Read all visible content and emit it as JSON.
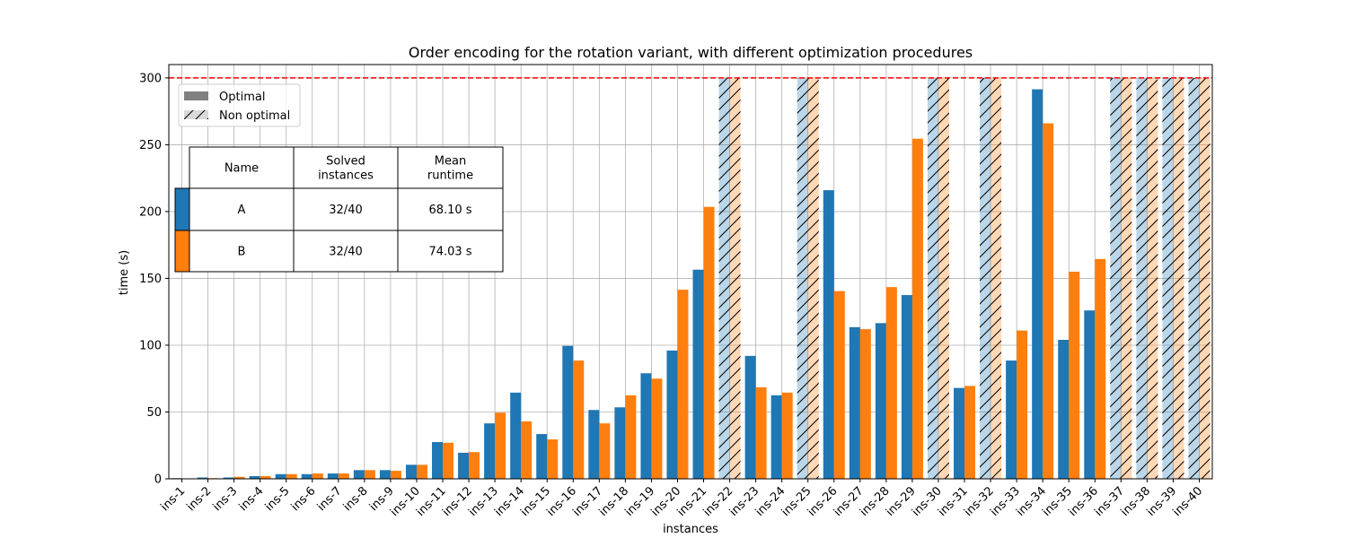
{
  "chart_data": {
    "type": "bar",
    "title": "Order encoding for the rotation variant, with different optimization procedures",
    "xlabel": "instances",
    "ylabel": "time (s)",
    "ylim": [
      0,
      300
    ],
    "yticks": [
      0,
      50,
      100,
      150,
      200,
      250,
      300
    ],
    "grid": true,
    "timeout_line": {
      "value": 300,
      "color": "#ff0000",
      "style": "dashed"
    },
    "legend": {
      "placement": "top-left",
      "items": [
        {
          "label": "Optimal",
          "style": "solid",
          "color": "#808080"
        },
        {
          "label": "Non optimal",
          "style": "hatched",
          "color": "#d9d9d9"
        }
      ]
    },
    "categories": [
      "ins-1",
      "ins-2",
      "ins-3",
      "ins-4",
      "ins-5",
      "ins-6",
      "ins-7",
      "ins-8",
      "ins-9",
      "ins-10",
      "ins-11",
      "ins-12",
      "ins-13",
      "ins-14",
      "ins-15",
      "ins-16",
      "ins-17",
      "ins-18",
      "ins-19",
      "ins-20",
      "ins-21",
      "ins-22",
      "ins-23",
      "ins-24",
      "ins-25",
      "ins-26",
      "ins-27",
      "ins-28",
      "ins-29",
      "ins-30",
      "ins-31",
      "ins-32",
      "ins-33",
      "ins-34",
      "ins-35",
      "ins-36",
      "ins-37",
      "ins-38",
      "ins-39",
      "ins-40"
    ],
    "series": [
      {
        "name": "A",
        "color": "#1f77b4",
        "values": [
          0.5,
          1,
          1,
          2,
          3.5,
          3.5,
          4,
          6.5,
          6.5,
          10.5,
          27.5,
          19.5,
          41.5,
          64.5,
          33.5,
          99.5,
          51.5,
          53.5,
          79,
          96,
          156.5,
          300,
          92,
          62.5,
          300,
          216,
          113.5,
          116.5,
          137.5,
          300,
          68,
          300,
          88.5,
          291.5,
          104,
          126,
          300,
          300,
          300,
          300
        ],
        "optimal": [
          true,
          true,
          true,
          true,
          true,
          true,
          true,
          true,
          true,
          true,
          true,
          true,
          true,
          true,
          true,
          true,
          true,
          true,
          true,
          true,
          true,
          false,
          true,
          true,
          false,
          true,
          true,
          true,
          true,
          false,
          true,
          false,
          true,
          true,
          true,
          true,
          false,
          false,
          false,
          false
        ]
      },
      {
        "name": "B",
        "color": "#ff7f0e",
        "values": [
          0.3,
          0.5,
          1.5,
          2,
          3.5,
          4,
          4,
          6.5,
          6,
          10.5,
          27,
          20,
          49.5,
          43,
          29.5,
          88.5,
          41.5,
          62.5,
          75,
          141.5,
          203.5,
          300,
          68.5,
          64.5,
          300,
          140.5,
          112,
          143.5,
          254.5,
          300,
          69.5,
          300,
          111,
          266,
          155,
          164.5,
          300,
          300,
          300,
          300
        ],
        "optimal": [
          true,
          true,
          true,
          true,
          true,
          true,
          true,
          true,
          true,
          true,
          true,
          true,
          true,
          true,
          true,
          true,
          true,
          true,
          true,
          true,
          true,
          false,
          true,
          true,
          false,
          true,
          true,
          true,
          true,
          false,
          true,
          false,
          true,
          true,
          true,
          true,
          false,
          false,
          false,
          false
        ]
      }
    ],
    "summary_table": {
      "headers": [
        "Name",
        "Solved\ninstances",
        "Mean\nruntime"
      ],
      "rows": [
        {
          "name": "A",
          "solved": "32/40",
          "mean": "68.10 s",
          "color": "#1f77b4"
        },
        {
          "name": "B",
          "solved": "32/40",
          "mean": "74.03 s",
          "color": "#ff7f0e"
        }
      ]
    }
  }
}
